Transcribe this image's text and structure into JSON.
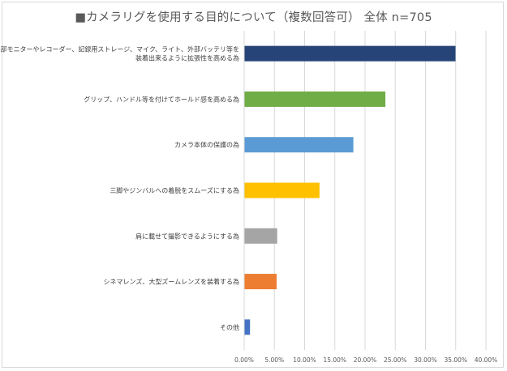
{
  "chart_data": {
    "type": "bar",
    "orientation": "horizontal",
    "title": "■カメラリグを使用する目的について（複数回答可） 全体 n=705",
    "categories": [
      [
        "外部モニターやレコーダー、記録用ストレージ、マイク、ライト、外部バッテリ等を",
        "装着出来るように拡張性を高める為"
      ],
      [
        "グリップ、ハンドル等を付けてホールド感を高める為"
      ],
      [
        "カメラ本体の保護の為"
      ],
      [
        "三脚やジンバルへの着脱をスムーズにする為"
      ],
      [
        "肩に載せて撮影できるようにする為"
      ],
      [
        "シネマレンズ、大型ズームレンズを装着する為"
      ],
      [
        "その他"
      ]
    ],
    "values": [
      34.9,
      23.3,
      18.0,
      12.4,
      5.4,
      5.3,
      0.9
    ],
    "colors": [
      "#264478",
      "#70ad47",
      "#5b9bd5",
      "#ffc000",
      "#a5a5a5",
      "#ed7d31",
      "#4472c4"
    ],
    "xlim": [
      0,
      40
    ],
    "xticks": [
      "0.00%",
      "5.00%",
      "10.00%",
      "15.00%",
      "20.00%",
      "25.00%",
      "30.00%",
      "35.00%",
      "40.00%"
    ],
    "grid": true,
    "legend": "none"
  }
}
